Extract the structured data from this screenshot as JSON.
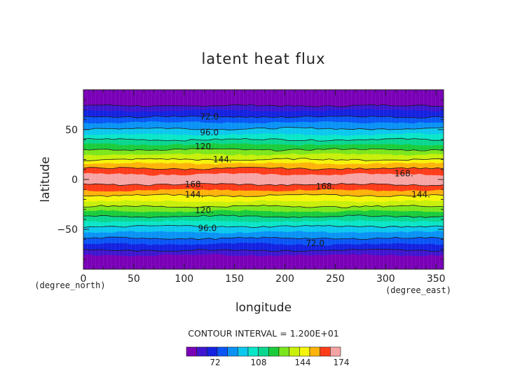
{
  "chart_data": {
    "type": "heatmap",
    "title": "latent heat flux",
    "xlabel": "longitude",
    "ylabel": "latitude",
    "x_unit": "(degree_east)",
    "y_unit": "(degree_north)",
    "xlim": [
      0,
      357.5
    ],
    "ylim": [
      -90,
      90
    ],
    "x_ticks": [
      0,
      50,
      100,
      150,
      200,
      250,
      300,
      350
    ],
    "y_ticks": [
      -50,
      0,
      50
    ],
    "contour_interval_label": "CONTOUR INTERVAL = 1.200E+01",
    "contour_labels": [
      {
        "text": "72.0",
        "x": 125,
        "y": 63
      },
      {
        "text": "96.0",
        "x": 125,
        "y": 47
      },
      {
        "text": "120.",
        "x": 120,
        "y": 33
      },
      {
        "text": "144.",
        "x": 138,
        "y": 20
      },
      {
        "text": "168.",
        "x": 318,
        "y": 6
      },
      {
        "text": "168.",
        "x": 110,
        "y": -5
      },
      {
        "text": "168.",
        "x": 240,
        "y": -7
      },
      {
        "text": "144.",
        "x": 110,
        "y": -15
      },
      {
        "text": "144.",
        "x": 335,
        "y": -15
      },
      {
        "text": "120.",
        "x": 120,
        "y": -31
      },
      {
        "text": "96.0",
        "x": 123,
        "y": -49
      },
      {
        "text": "72.0",
        "x": 230,
        "y": -64
      }
    ],
    "bands_by_latitude": [
      {
        "lat_from": 90,
        "lat_to": 74,
        "color": "#7a00b8"
      },
      {
        "lat_from": 74,
        "lat_to": 69,
        "color": "#3f15d0"
      },
      {
        "lat_from": 69,
        "lat_to": 63,
        "color": "#1422e0"
      },
      {
        "lat_from": 63,
        "lat_to": 57,
        "color": "#0a55f5"
      },
      {
        "lat_from": 57,
        "lat_to": 51,
        "color": "#0a92f5"
      },
      {
        "lat_from": 51,
        "lat_to": 45,
        "color": "#0cc7ee"
      },
      {
        "lat_from": 45,
        "lat_to": 40,
        "color": "#0ae6c8"
      },
      {
        "lat_from": 40,
        "lat_to": 35,
        "color": "#0ad690"
      },
      {
        "lat_from": 35,
        "lat_to": 30,
        "color": "#1acc3c"
      },
      {
        "lat_from": 30,
        "lat_to": 25,
        "color": "#7ce61c"
      },
      {
        "lat_from": 25,
        "lat_to": 20,
        "color": "#c8f00a"
      },
      {
        "lat_from": 20,
        "lat_to": 16,
        "color": "#f5f50a"
      },
      {
        "lat_from": 16,
        "lat_to": 11,
        "color": "#ffb30a"
      },
      {
        "lat_from": 11,
        "lat_to": 5,
        "color": "#ff3c1a"
      },
      {
        "lat_from": 5,
        "lat_to": -5,
        "color": "#f7a4a4"
      },
      {
        "lat_from": -5,
        "lat_to": -11,
        "color": "#ff3c1a"
      },
      {
        "lat_from": -11,
        "lat_to": -16,
        "color": "#ffb30a"
      },
      {
        "lat_from": -16,
        "lat_to": -22,
        "color": "#f5f50a"
      },
      {
        "lat_from": -22,
        "lat_to": -27,
        "color": "#c8f00a"
      },
      {
        "lat_from": -27,
        "lat_to": -32,
        "color": "#7ce61c"
      },
      {
        "lat_from": -32,
        "lat_to": -37,
        "color": "#1acc3c"
      },
      {
        "lat_from": -37,
        "lat_to": -42,
        "color": "#0ad690"
      },
      {
        "lat_from": -42,
        "lat_to": -47,
        "color": "#0ae6c8"
      },
      {
        "lat_from": -47,
        "lat_to": -53,
        "color": "#0cc7ee"
      },
      {
        "lat_from": -53,
        "lat_to": -59,
        "color": "#0a92f5"
      },
      {
        "lat_from": -59,
        "lat_to": -65,
        "color": "#0a55f5"
      },
      {
        "lat_from": -65,
        "lat_to": -71,
        "color": "#1422e0"
      },
      {
        "lat_from": -71,
        "lat_to": -76,
        "color": "#3f15d0"
      },
      {
        "lat_from": -76,
        "lat_to": -90,
        "color": "#7a00b8"
      }
    ],
    "colorbar": {
      "colors": [
        "#7a00b8",
        "#3f15d0",
        "#1422e0",
        "#0a55f5",
        "#0a92f5",
        "#0cc7ee",
        "#0ae6c8",
        "#0ad690",
        "#1acc3c",
        "#7ce61c",
        "#c8f00a",
        "#f5f50a",
        "#ffb30a",
        "#ff3c1a",
        "#f7a4a4"
      ],
      "tick_labels": [
        "72",
        "108",
        "144",
        "174"
      ]
    }
  }
}
